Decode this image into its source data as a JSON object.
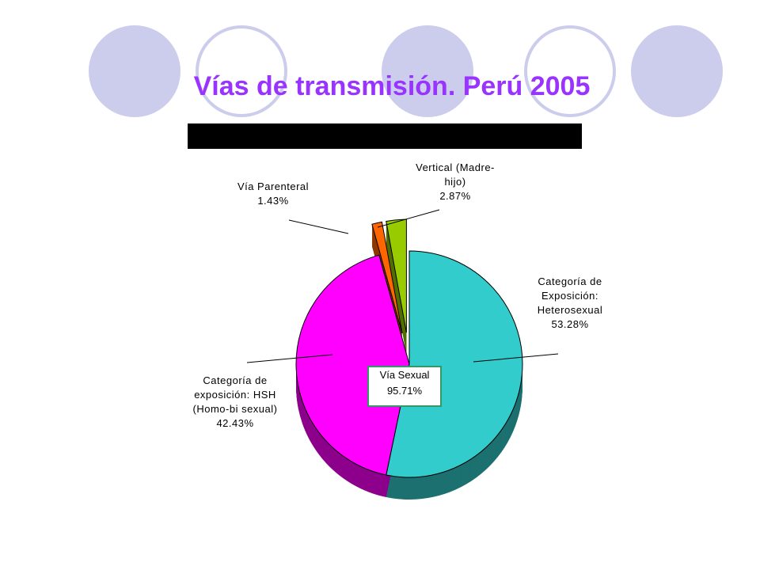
{
  "chart_data": {
    "type": "pie",
    "title": "Vías de transmisión. Perú 2005",
    "categories": [
      "Categoría de Exposición: Heterosexual",
      "Categoría de exposición: HSH (Homo-bi sexual)",
      "Vía Parenteral",
      "Vertical (Madre-hijo)"
    ],
    "values": [
      53.28,
      42.43,
      1.43,
      2.87
    ],
    "value_labels": [
      "53.28%",
      "42.43%",
      "1.43%",
      "2.87%"
    ],
    "colors": [
      "#33cccc",
      "#ff00ff",
      "#ff6600",
      "#99cc00"
    ],
    "exploded": [
      false,
      false,
      true,
      true
    ],
    "annotation": {
      "label": "Vía Sexual",
      "value_label": "95.71%"
    }
  }
}
